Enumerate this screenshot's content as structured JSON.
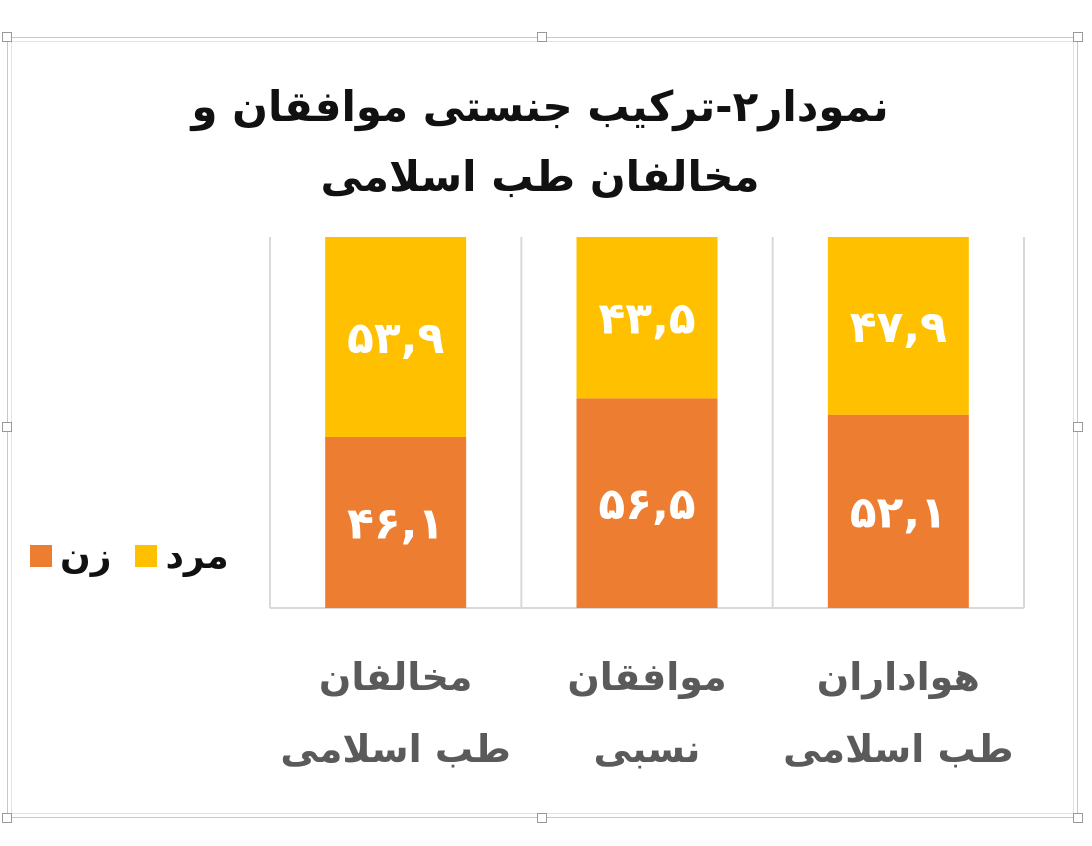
{
  "chart_data": {
    "type": "bar",
    "stacked": true,
    "percent": true,
    "title_lines": [
      "نمودار۲-ترکیب جنستی موافقان و",
      "مخالفان طب اسلامی"
    ],
    "categories": [
      [
        "مخالفان",
        "طب اسلامی"
      ],
      [
        "موافقان",
        "نسبی"
      ],
      [
        "هواداران",
        "طب اسلامی"
      ]
    ],
    "series": [
      {
        "name": "زن",
        "color": "#ed7d31",
        "values": [
          46.1,
          56.5,
          52.1
        ],
        "labels": [
          "۴۶,۱",
          "۵۶,۵",
          "۵۲,۱"
        ]
      },
      {
        "name": "مرد",
        "color": "#ffc000",
        "values": [
          53.9,
          43.5,
          47.9
        ],
        "labels": [
          "۵۳,۹",
          "۴۳,۵",
          "۴۷,۹"
        ]
      }
    ],
    "ylim": [
      0,
      100
    ],
    "legend_position": "left",
    "grid": "vertical"
  }
}
